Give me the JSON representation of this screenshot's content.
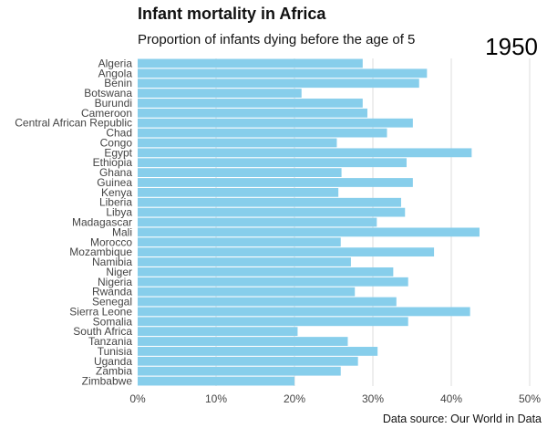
{
  "chart_data": {
    "type": "bar",
    "orientation": "horizontal",
    "title": "Infant mortality in Africa",
    "subtitle": "Proportion of infants dying before the age of 5",
    "year": "1950",
    "source": "Data source: Our World in Data",
    "categories": [
      "Algeria",
      "Angola",
      "Benin",
      "Botswana",
      "Burundi",
      "Cameroon",
      "Central African Republic",
      "Chad",
      "Congo",
      "Egypt",
      "Ethiopia",
      "Ghana",
      "Guinea",
      "Kenya",
      "Liberia",
      "Libya",
      "Madagascar",
      "Mali",
      "Morocco",
      "Mozambique",
      "Namibia",
      "Niger",
      "Nigeria",
      "Rwanda",
      "Senegal",
      "Sierra Leone",
      "Somalia",
      "South Africa",
      "Tanzania",
      "Tunisia",
      "Uganda",
      "Zambia",
      "Zimbabwe"
    ],
    "values": [
      28.7,
      36.9,
      35.9,
      20.9,
      28.7,
      29.3,
      35.1,
      31.8,
      25.4,
      42.6,
      34.3,
      26.0,
      35.1,
      25.6,
      33.6,
      34.1,
      30.5,
      43.6,
      25.9,
      37.8,
      27.2,
      32.6,
      34.5,
      27.7,
      33.0,
      42.4,
      34.5,
      20.4,
      26.8,
      30.6,
      28.1,
      25.9,
      20.0
    ],
    "xlim": [
      0,
      50
    ],
    "xticks": [
      0,
      10,
      20,
      30,
      40,
      50
    ],
    "xtick_labels": [
      "0%",
      "10%",
      "20%",
      "30%",
      "40%",
      "50%"
    ],
    "grid": true,
    "bar_color": "#87ceeb",
    "grid_color": "#dddddd"
  }
}
